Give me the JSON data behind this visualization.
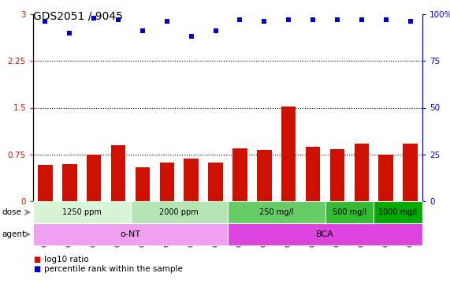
{
  "title": "GDS2051 / 9045",
  "samples": [
    "GSM105783",
    "GSM105784",
    "GSM105785",
    "GSM105786",
    "GSM105787",
    "GSM105788",
    "GSM105789",
    "GSM105790",
    "GSM105775",
    "GSM105776",
    "GSM105777",
    "GSM105778",
    "GSM105779",
    "GSM105780",
    "GSM105781",
    "GSM105782"
  ],
  "log10_ratio": [
    0.58,
    0.6,
    0.75,
    0.9,
    0.55,
    0.62,
    0.68,
    0.62,
    0.85,
    0.82,
    1.52,
    0.87,
    0.83,
    0.93,
    0.75,
    0.93
  ],
  "percentile": [
    96,
    90,
    98,
    97,
    91,
    96,
    88,
    91,
    97,
    96,
    97,
    97,
    97,
    97,
    97,
    96
  ],
  "bar_color": "#cc1100",
  "dot_color": "#0000cc",
  "ylim_left": [
    0,
    3
  ],
  "ylim_right": [
    0,
    100
  ],
  "yticks_left": [
    0,
    0.75,
    1.5,
    2.25,
    3
  ],
  "yticks_right": [
    0,
    25,
    50,
    75,
    100
  ],
  "hlines": [
    0.75,
    1.5,
    2.25
  ],
  "dose_groups": [
    {
      "label": "1250 ppm",
      "start": 0,
      "end": 4,
      "color": "#d6f5d6"
    },
    {
      "label": "2000 ppm",
      "start": 4,
      "end": 8,
      "color": "#b3e6b3"
    },
    {
      "label": "250 mg/l",
      "start": 8,
      "end": 12,
      "color": "#66cc66"
    },
    {
      "label": "500 mg/l",
      "start": 12,
      "end": 14,
      "color": "#33bb33"
    },
    {
      "label": "1000 mg/l",
      "start": 14,
      "end": 16,
      "color": "#00aa00"
    }
  ],
  "agent_groups": [
    {
      "label": "o-NT",
      "start": 0,
      "end": 8,
      "color": "#f0a0f0"
    },
    {
      "label": "BCA",
      "start": 8,
      "end": 16,
      "color": "#dd44dd"
    }
  ],
  "background_color": "#ffffff",
  "xticklabel_fontsize": 6.5,
  "title_fontsize": 10,
  "left_tick_color": "#cc1100",
  "right_tick_color": "#0000cc"
}
